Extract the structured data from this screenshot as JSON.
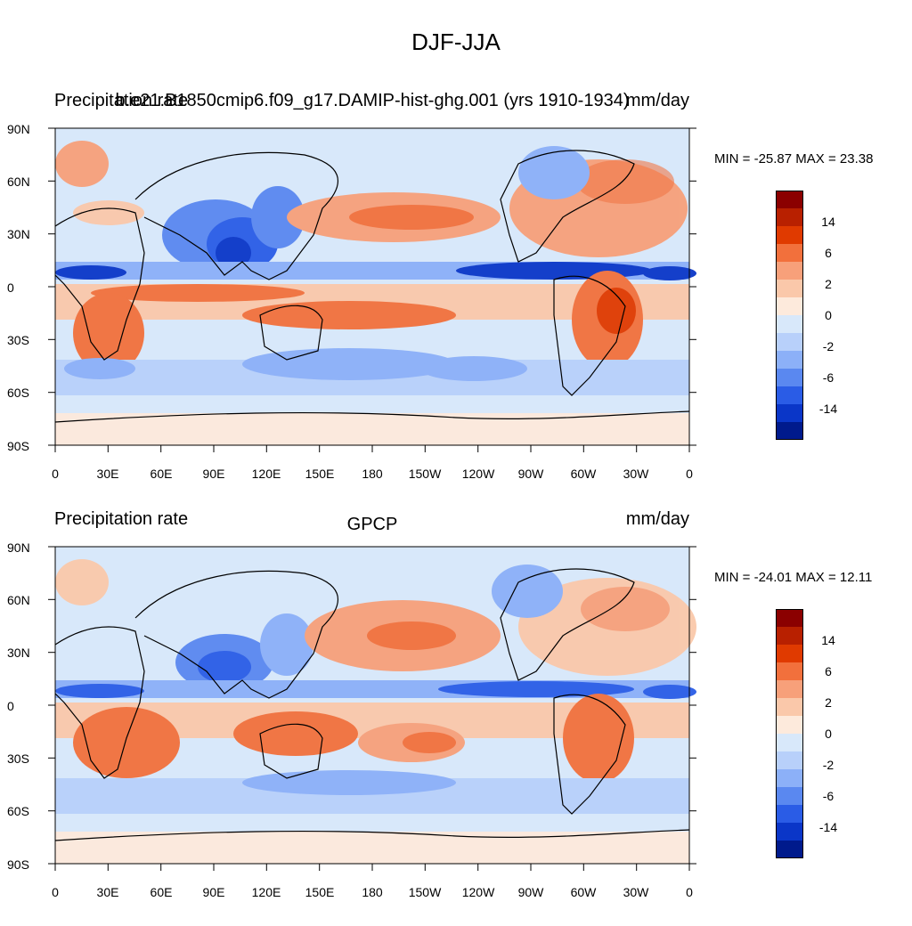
{
  "figure": {
    "main_title": "DJF-JJA"
  },
  "panels": [
    {
      "id": "top",
      "left_title": "Precipitation rate",
      "center_title": "b.e21.B1850cmip6.f09_g17.DAMIP-hist-ghg.001 (yrs 1910-1934)",
      "right_title": "mm/day",
      "min_max": "MIN = -25.87 MAX =  23.38",
      "colorbar_labels": [
        "14",
        "6",
        "2",
        "0",
        "-2",
        "-6",
        "-14"
      ],
      "colors": [
        "#8b0000",
        "#b82000",
        "#e03a00",
        "#f2703c",
        "#f7a07a",
        "#fac8aa",
        "#fdeadc",
        "#d8e8fa",
        "#b8d0fa",
        "#8cb0f8",
        "#5a88f0",
        "#2a5ce6",
        "#0a36c8",
        "#001a8c"
      ]
    },
    {
      "id": "bottom",
      "left_title": "Precipitation rate",
      "center_title": "GPCP",
      "right_title": "mm/day",
      "min_max": "MIN = -24.01 MAX =  12.11",
      "colorbar_labels": [
        "14",
        "6",
        "2",
        "0",
        "-2",
        "-6",
        "-14"
      ],
      "colors": [
        "#8b0000",
        "#b82000",
        "#e03a00",
        "#f2703c",
        "#f7a07a",
        "#fac8aa",
        "#fdeadc",
        "#d8e8fa",
        "#b8d0fa",
        "#8cb0f8",
        "#5a88f0",
        "#2a5ce6",
        "#0a36c8",
        "#001a8c"
      ]
    }
  ],
  "axes": {
    "lat_labels": [
      "90N",
      "60N",
      "30N",
      "0",
      "30S",
      "60S",
      "90S"
    ],
    "lon_labels": [
      "0",
      "30E",
      "60E",
      "90E",
      "120E",
      "150E",
      "180",
      "150W",
      "120W",
      "90W",
      "60W",
      "30W",
      "0"
    ]
  }
}
